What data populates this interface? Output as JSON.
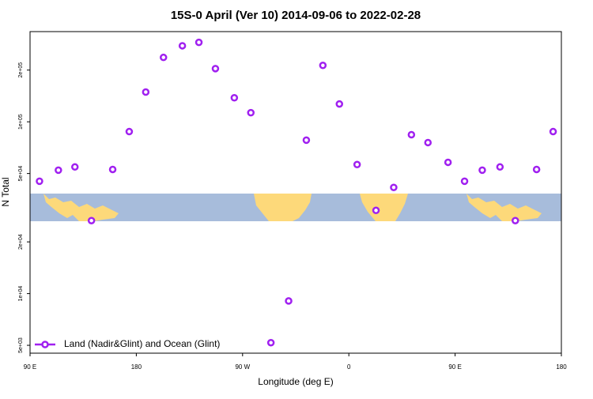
{
  "chart_data": {
    "type": "scatter",
    "title": "15S-0 April (Ver 10)   2014-09-06 to 2022-02-28",
    "x_label": "Longitude (deg E)",
    "y_label": "N Total",
    "log_y": true,
    "legend": "bottom-left",
    "xlim": [
      90,
      540
    ],
    "xticks": [
      {
        "value": 90,
        "label": "90 E"
      },
      180,
      {
        "value": 270,
        "label": "90 W"
      },
      {
        "value": 360,
        "label": "0"
      },
      {
        "value": 450,
        "label": "90 E"
      },
      {
        "value": 540,
        "label": "180"
      }
    ],
    "ylim": [
      4500,
      335000
    ],
    "yticks": [
      {
        "value": 5000,
        "label": "5e+03"
      },
      {
        "value": 10000,
        "label": "1e+04"
      },
      {
        "value": 20000,
        "label": "2e+04"
      },
      {
        "value": 50000,
        "label": "5e+04"
      },
      {
        "value": 100000,
        "label": "1e+05"
      },
      {
        "value": 200000,
        "label": "2e+05"
      }
    ],
    "series": [
      {
        "name": "Land (Nadir&Glint) and Ocean (Glint)",
        "color": "#a020f0",
        "x": [
          98,
          114,
          128,
          142,
          160,
          174,
          188,
          203,
          219,
          233,
          247,
          263,
          277,
          294,
          309,
          324,
          338,
          352,
          367,
          383,
          398,
          413,
          427,
          444,
          458,
          473,
          488,
          501,
          519,
          533
        ],
        "values": [
          45100,
          52300,
          54600,
          26600,
          52800,
          87700,
          149000,
          237000,
          277000,
          290000,
          204000,
          138000,
          113000,
          5180,
          9060,
          78200,
          213000,
          127000,
          56400,
          30500,
          41500,
          84100,
          75700,
          58100,
          45100,
          52300,
          54600,
          26600,
          52800,
          87700
        ]
      }
    ]
  }
}
